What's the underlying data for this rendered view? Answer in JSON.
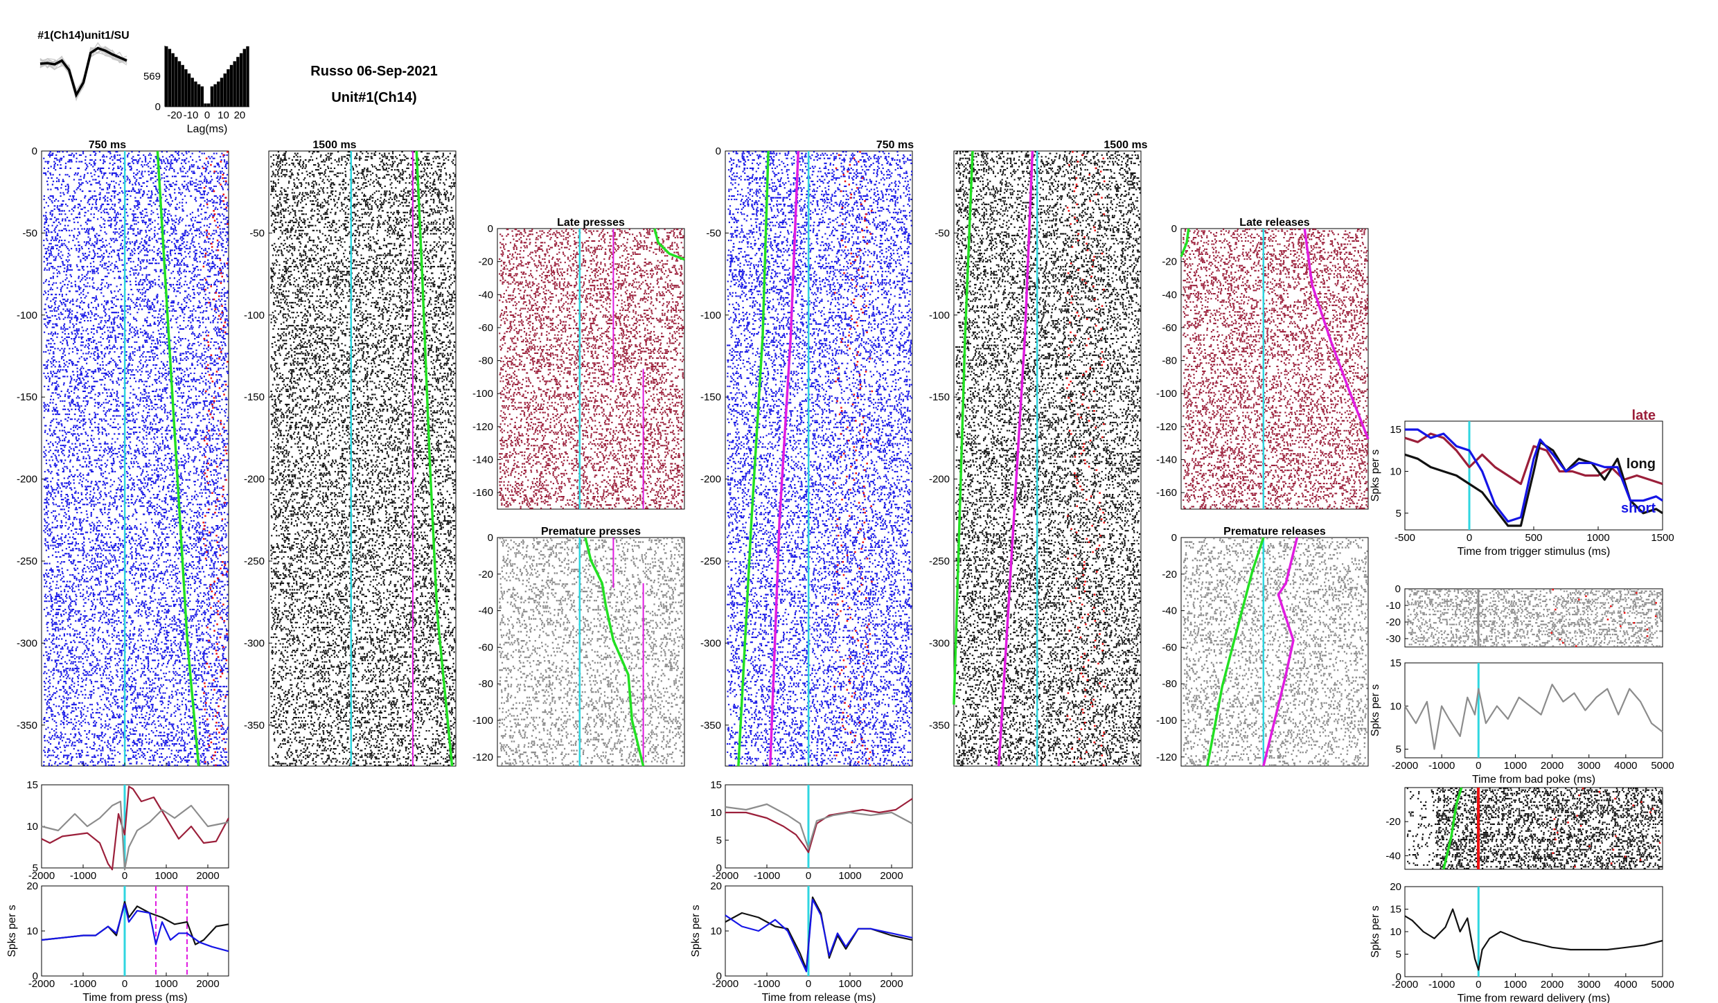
{
  "header": {
    "subject_date": "Russo 06-Sep-2021",
    "unit": "Unit#1(Ch14)"
  },
  "colors": {
    "blue": "#1515e6",
    "black": "#111111",
    "maroon": "#9b1f3a",
    "gray": "#8c8c8c",
    "cyan": "#2fd6e0",
    "green": "#22e022",
    "magenta": "#e01ce0",
    "red": "#ee1010"
  },
  "chart_data": [
    {
      "id": "waveform",
      "type": "line",
      "title": "#1(Ch14)unit1/SU",
      "series": [
        {
          "values": [
            0,
            0.02,
            -0.02,
            0.1,
            -0.2,
            -1.0,
            -0.6,
            0.35,
            0.5,
            0.42,
            0.3,
            0.2,
            0.1
          ]
        }
      ]
    },
    {
      "id": "autocorr",
      "type": "bar",
      "xlabel": "Lag(ms)",
      "xticks": [
        -20,
        -10,
        0,
        10,
        20
      ],
      "yticks": [
        0,
        569
      ],
      "x": [
        -25,
        -23,
        -21,
        -19,
        -17,
        -15,
        -13,
        -11,
        -9,
        -7,
        -5,
        -3,
        -1,
        1,
        3,
        5,
        7,
        9,
        11,
        13,
        15,
        17,
        19,
        21,
        23,
        25
      ],
      "values": [
        1130,
        1080,
        1000,
        930,
        850,
        780,
        700,
        620,
        540,
        470,
        420,
        380,
        60,
        60,
        380,
        420,
        470,
        540,
        620,
        700,
        780,
        850,
        930,
        1000,
        1080,
        1130
      ]
    },
    {
      "id": "raster_press_short",
      "type": "scatter",
      "title": "750 ms",
      "xlim": [
        -2000,
        2500
      ],
      "ylim": [
        -375,
        0
      ],
      "yticks": [
        0,
        -50,
        -100,
        -150,
        -200,
        -250,
        -300,
        -350
      ],
      "markers": [
        0
      ]
    },
    {
      "id": "raster_press_long",
      "type": "scatter",
      "title": "1500 ms",
      "xlim": [
        -2000,
        2500
      ],
      "ylim": [
        -375,
        0
      ],
      "yticks": [
        -50,
        -100,
        -150,
        -200,
        -250,
        -300,
        -350
      ],
      "markers": [
        0
      ]
    },
    {
      "id": "raster_late_press",
      "type": "scatter",
      "title": "Late presses",
      "ylim": [
        -170,
        0
      ],
      "yticks": [
        0,
        -20,
        -40,
        -60,
        -80,
        -100,
        -120,
        -140,
        -160
      ]
    },
    {
      "id": "raster_premature_press",
      "type": "scatter",
      "title": "Premature presses",
      "ylim": [
        -125,
        0
      ],
      "yticks": [
        0,
        -20,
        -40,
        -60,
        -80,
        -100,
        -120
      ]
    },
    {
      "id": "psth_press_late",
      "type": "line",
      "xlim": [
        -2000,
        2500
      ],
      "ylim": [
        5,
        15
      ],
      "xticks": [
        -2000,
        -1000,
        0,
        1000,
        2000
      ],
      "yticks": [
        5,
        10,
        15
      ],
      "series": [
        {
          "color": "maroon",
          "x": [
            -2000,
            -1800,
            -1500,
            -1200,
            -900,
            -600,
            -400,
            -300,
            -150,
            0,
            100,
            200,
            400,
            700,
            1000,
            1300,
            1600,
            1900,
            2200,
            2500
          ],
          "values": [
            8.5,
            8.0,
            8.8,
            9.0,
            9.2,
            8.0,
            5.5,
            4.8,
            11.5,
            9.0,
            14.8,
            14.5,
            13.0,
            13.5,
            11.0,
            8.5,
            10.0,
            8.0,
            8.2,
            11.0
          ]
        },
        {
          "color": "gray",
          "x": [
            -2000,
            -1600,
            -1200,
            -900,
            -600,
            -300,
            -100,
            0,
            100,
            300,
            600,
            900,
            1200,
            1600,
            2000,
            2500
          ],
          "values": [
            10.0,
            9.5,
            11.5,
            10.0,
            11.0,
            12.5,
            13.0,
            4.8,
            7.5,
            9.5,
            10.5,
            12.0,
            11.0,
            12.5,
            10.0,
            10.5
          ]
        }
      ]
    },
    {
      "id": "psth_press",
      "type": "line",
      "xlabel": "Time from press (ms)",
      "ylabel": "Spks per s",
      "xlim": [
        -2000,
        2500
      ],
      "ylim": [
        0,
        20
      ],
      "xticks": [
        -2000,
        -1000,
        0,
        1000,
        2000
      ],
      "yticks": [
        0,
        10,
        20
      ],
      "series": [
        {
          "color": "black",
          "x": [
            -2000,
            -1500,
            -1000,
            -700,
            -400,
            -200,
            0,
            100,
            300,
            600,
            900,
            1200,
            1500,
            1700,
            1900,
            2200,
            2500
          ],
          "values": [
            8.0,
            8.5,
            9.0,
            9.0,
            11.0,
            9.0,
            16.5,
            13.0,
            15.5,
            14.0,
            13.0,
            11.5,
            12.0,
            7.0,
            8.0,
            11.0,
            11.5
          ]
        },
        {
          "color": "blue",
          "x": [
            -2000,
            -1500,
            -1000,
            -700,
            -400,
            -200,
            0,
            100,
            300,
            600,
            750,
            900,
            1100,
            1300,
            1500,
            1800,
            2100,
            2500
          ],
          "values": [
            8.0,
            8.5,
            9.0,
            9.0,
            11.0,
            9.5,
            16.0,
            12.0,
            14.5,
            14.0,
            7.0,
            12.0,
            8.0,
            9.5,
            9.5,
            7.5,
            6.5,
            5.5
          ]
        }
      ]
    },
    {
      "id": "raster_release_short",
      "type": "scatter",
      "title": "750 ms",
      "xlim": [
        -2000,
        2500
      ],
      "ylim": [
        -375,
        0
      ],
      "yticks": [
        0,
        -50,
        -100,
        -150,
        -200,
        -250,
        -300,
        -350
      ]
    },
    {
      "id": "raster_release_long",
      "type": "scatter",
      "title": "1500 ms",
      "xlim": [
        -2000,
        2500
      ],
      "ylim": [
        -375,
        0
      ],
      "yticks": [
        -50,
        -100,
        -150,
        -200,
        -250,
        -300,
        -350
      ]
    },
    {
      "id": "raster_late_release",
      "type": "scatter",
      "title": "Late releases",
      "ylim": [
        -170,
        0
      ],
      "yticks": [
        0,
        -20,
        -40,
        -60,
        -80,
        -100,
        -120,
        -140,
        -160
      ]
    },
    {
      "id": "raster_premature_release",
      "type": "scatter",
      "title": "Premature releases",
      "ylim": [
        -125,
        0
      ],
      "yticks": [
        0,
        -20,
        -40,
        -60,
        -80,
        -100,
        -120
      ]
    },
    {
      "id": "psth_release_late",
      "type": "line",
      "xlim": [
        -2000,
        2500
      ],
      "ylim": [
        0,
        15
      ],
      "xticks": [
        -2000,
        -1000,
        0,
        1000,
        2000
      ],
      "yticks": [
        0,
        5,
        10,
        15
      ],
      "series": [
        {
          "color": "maroon",
          "x": [
            -2000,
            -1500,
            -1000,
            -600,
            -300,
            -100,
            0,
            200,
            500,
            900,
            1300,
            1700,
            2100,
            2500
          ],
          "values": [
            10.0,
            10.0,
            9.0,
            7.5,
            6.0,
            4.0,
            2.8,
            8.0,
            9.5,
            10.0,
            10.5,
            10.0,
            10.5,
            12.5
          ]
        },
        {
          "color": "gray",
          "x": [
            -2000,
            -1500,
            -1000,
            -500,
            -200,
            0,
            200,
            600,
            1000,
            1500,
            2000,
            2500
          ],
          "values": [
            11.0,
            10.5,
            11.5,
            9.5,
            8.0,
            3.5,
            8.5,
            9.5,
            10.0,
            9.5,
            10.0,
            8.0
          ]
        }
      ]
    },
    {
      "id": "psth_release",
      "type": "line",
      "xlabel": "Time from release (ms)",
      "ylabel": "Spks per s",
      "xlim": [
        -2000,
        2500
      ],
      "ylim": [
        0,
        20
      ],
      "xticks": [
        -2000,
        -1000,
        0,
        1000,
        2000
      ],
      "yticks": [
        0,
        10,
        20
      ],
      "series": [
        {
          "color": "black",
          "x": [
            -2000,
            -1600,
            -1200,
            -800,
            -500,
            -200,
            -50,
            100,
            300,
            500,
            700,
            900,
            1200,
            1500,
            2000,
            2500
          ],
          "values": [
            12.0,
            14.0,
            13.0,
            11.0,
            10.5,
            5.0,
            1.5,
            17.5,
            14.0,
            4.0,
            9.0,
            6.0,
            10.5,
            10.5,
            9.0,
            8.0
          ]
        },
        {
          "color": "blue",
          "x": [
            -2000,
            -1600,
            -1200,
            -800,
            -500,
            -200,
            -50,
            100,
            300,
            500,
            700,
            900,
            1200,
            1500,
            2000,
            2500
          ],
          "values": [
            13.5,
            11.0,
            10.0,
            12.5,
            10.0,
            4.0,
            1.0,
            17.0,
            13.5,
            4.5,
            9.5,
            6.5,
            10.5,
            10.5,
            9.5,
            8.5
          ]
        }
      ]
    },
    {
      "id": "psth_trigger",
      "type": "line",
      "xlabel": "Time from trigger stimulus (ms)",
      "ylabel": "Spks per s",
      "xlim": [
        -500,
        1500
      ],
      "ylim": [
        3,
        16
      ],
      "xticks": [
        -500,
        0,
        500,
        1000,
        1500
      ],
      "yticks": [
        5,
        10,
        15
      ],
      "legend": [
        "late",
        "long",
        "short"
      ],
      "series": [
        {
          "name": "late",
          "color": "maroon",
          "x": [
            -500,
            -400,
            -300,
            -200,
            -100,
            0,
            100,
            200,
            300,
            400,
            500,
            600,
            700,
            800,
            900,
            1000,
            1100,
            1200,
            1300,
            1400,
            1500
          ],
          "values": [
            14.0,
            13.5,
            14.5,
            14.0,
            12.5,
            10.5,
            12.0,
            10.5,
            9.5,
            8.5,
            13.0,
            12.5,
            10.0,
            10.0,
            9.5,
            9.5,
            10.5,
            9.0,
            9.5,
            9.0,
            8.5
          ]
        },
        {
          "name": "long",
          "color": "black",
          "x": [
            -500,
            -400,
            -300,
            -200,
            -100,
            0,
            100,
            200,
            300,
            400,
            500,
            550,
            650,
            750,
            850,
            950,
            1050,
            1150,
            1250,
            1350,
            1450,
            1500
          ],
          "values": [
            12.0,
            11.5,
            10.5,
            10.0,
            9.5,
            8.5,
            7.5,
            5.5,
            3.5,
            3.5,
            10.0,
            13.5,
            12.5,
            10.0,
            11.5,
            11.0,
            9.0,
            11.5,
            6.5,
            5.0,
            5.5,
            5.0
          ]
        },
        {
          "name": "short",
          "color": "blue",
          "x": [
            -500,
            -400,
            -300,
            -200,
            -100,
            0,
            100,
            200,
            300,
            400,
            500,
            550,
            650,
            750,
            850,
            950,
            1050,
            1150,
            1250,
            1350,
            1450,
            1500
          ],
          "values": [
            15.0,
            15.0,
            14.0,
            14.5,
            13.0,
            12.5,
            10.0,
            6.0,
            4.0,
            4.5,
            11.5,
            13.8,
            12.0,
            10.0,
            11.0,
            11.0,
            10.5,
            10.5,
            6.5,
            6.5,
            7.0,
            6.5
          ]
        }
      ]
    },
    {
      "id": "raster_bad_poke",
      "type": "scatter",
      "xlim": [
        -2000,
        5000
      ],
      "ylim": [
        -35,
        0
      ],
      "yticks": [
        0,
        -10,
        -20,
        -30
      ]
    },
    {
      "id": "psth_bad_poke",
      "type": "line",
      "xlabel": "Time from bad poke (ms)",
      "ylabel": "Spks per s",
      "xlim": [
        -2000,
        5000
      ],
      "ylim": [
        4,
        15
      ],
      "xticks": [
        -2000,
        -1000,
        0,
        1000,
        2000,
        3000,
        4000,
        5000
      ],
      "yticks": [
        5,
        10,
        15
      ],
      "series": [
        {
          "color": "gray",
          "x": [
            -2000,
            -1700,
            -1400,
            -1200,
            -1000,
            -800,
            -500,
            -300,
            -100,
            0,
            200,
            500,
            800,
            1100,
            1400,
            1700,
            2000,
            2300,
            2600,
            2900,
            3200,
            3500,
            3800,
            4100,
            4400,
            4700,
            5000
          ],
          "values": [
            10.0,
            8.0,
            10.5,
            5.0,
            10.0,
            8.5,
            6.5,
            11.0,
            9.0,
            12.0,
            8.0,
            10.0,
            8.5,
            11.0,
            10.0,
            9.0,
            12.5,
            10.5,
            11.5,
            9.5,
            11.0,
            12.0,
            9.0,
            12.0,
            10.5,
            8.0,
            7.0
          ]
        }
      ]
    },
    {
      "id": "raster_reward",
      "type": "scatter",
      "xlim": [
        -2000,
        5000
      ],
      "ylim": [
        -48,
        0
      ],
      "yticks": [
        -20,
        -40
      ]
    },
    {
      "id": "psth_reward",
      "type": "line",
      "xlabel": "Time from reward delivery (ms)",
      "ylabel": "Spks per s",
      "xlim": [
        -2000,
        5000
      ],
      "ylim": [
        0,
        20
      ],
      "xticks": [
        -2000,
        -1000,
        0,
        1000,
        2000,
        3000,
        4000,
        5000
      ],
      "yticks": [
        0,
        5,
        10,
        15,
        20
      ],
      "series": [
        {
          "color": "black",
          "x": [
            -2000,
            -1800,
            -1500,
            -1200,
            -900,
            -700,
            -500,
            -300,
            -100,
            0,
            100,
            300,
            600,
            900,
            1200,
            1500,
            2000,
            2500,
            3000,
            3500,
            4000,
            4500,
            5000
          ],
          "values": [
            13.5,
            12.5,
            10.0,
            8.5,
            11.0,
            15.0,
            10.0,
            13.0,
            4.0,
            1.5,
            6.0,
            8.5,
            10.0,
            9.0,
            8.0,
            7.5,
            6.5,
            6.0,
            6.0,
            6.0,
            6.5,
            7.0,
            8.0
          ]
        }
      ]
    }
  ]
}
